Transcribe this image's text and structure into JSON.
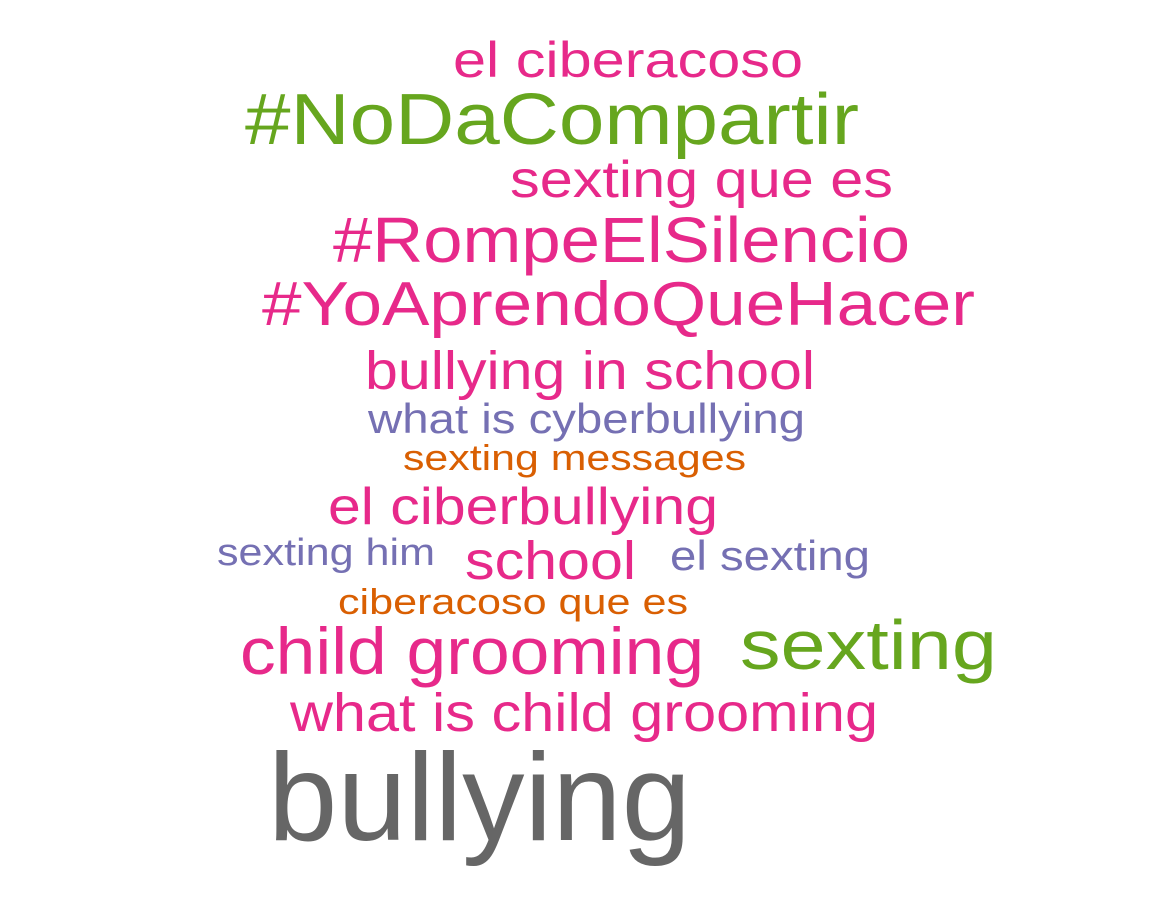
{
  "colors": {
    "magenta": "#E7298A",
    "green": "#66A61E",
    "purple": "#7570B3",
    "orange": "#D95F02",
    "gray": "#666666",
    "background": "#FFFFFF"
  },
  "words": [
    {
      "id": "w01",
      "text": "el ciberacoso",
      "color": "magenta"
    },
    {
      "id": "w02",
      "text": "#NoDaCompartir",
      "color": "green"
    },
    {
      "id": "w03",
      "text": "sexting que es",
      "color": "magenta"
    },
    {
      "id": "w04",
      "text": "#RompeElSilencio",
      "color": "magenta"
    },
    {
      "id": "w05",
      "text": "#YoAprendoQueHacer",
      "color": "magenta"
    },
    {
      "id": "w06",
      "text": "bullying in school",
      "color": "magenta"
    },
    {
      "id": "w07",
      "text": "what is cyberbullying",
      "color": "purple"
    },
    {
      "id": "w08",
      "text": "sexting messages",
      "color": "orange"
    },
    {
      "id": "w09",
      "text": "el ciberbullying",
      "color": "magenta"
    },
    {
      "id": "w10",
      "text": "sexting him",
      "color": "purple"
    },
    {
      "id": "w11",
      "text": "school",
      "color": "magenta"
    },
    {
      "id": "w12",
      "text": "el sexting",
      "color": "purple"
    },
    {
      "id": "w13",
      "text": "ciberacoso que es",
      "color": "orange"
    },
    {
      "id": "w14",
      "text": "child grooming",
      "color": "magenta"
    },
    {
      "id": "w15",
      "text": "sexting",
      "color": "green"
    },
    {
      "id": "w16",
      "text": "what is child grooming",
      "color": "magenta"
    },
    {
      "id": "w17",
      "text": "bullying",
      "color": "gray"
    }
  ]
}
